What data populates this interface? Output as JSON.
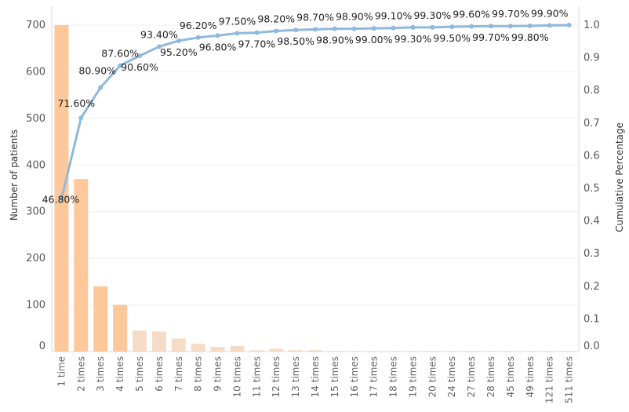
{
  "chart_data": {
    "type": "bar",
    "xlabel": "",
    "ylabel": "Number of patients",
    "y2label": "Cumulative Percentage",
    "ylim": [
      0,
      700
    ],
    "y2lim": [
      0,
      1.0
    ],
    "grid": true,
    "yticks": [
      "0",
      "100",
      "200",
      "300",
      "400",
      "500",
      "600",
      "700"
    ],
    "y2ticks": [
      "0.0",
      "0.1",
      "0.2",
      "0.3",
      "0.4",
      "0.5",
      "0.6",
      "0.7",
      "0.8",
      "0.9",
      "1.0"
    ],
    "categories": [
      "1 time",
      "2 times",
      "3 times",
      "4 times",
      "5 times",
      "6 times",
      "7 times",
      "8 times",
      "9 times",
      "10 times",
      "11 times",
      "12 times",
      "13 times",
      "14 times",
      "15 times",
      "16 times",
      "17 times",
      "18 times",
      "19 times",
      "20 times",
      "24 times",
      "27 times",
      "28 times",
      "45 times",
      "49 times",
      "121 times",
      "511 times"
    ],
    "series": [
      {
        "type": "bar",
        "values": [
          700,
          370,
          140,
          100,
          45,
          43,
          28,
          17,
          10,
          12,
          3,
          6,
          3,
          3,
          1,
          1,
          1,
          1,
          1,
          1,
          1,
          1,
          1,
          1,
          1,
          1,
          1
        ],
        "colors": [
          "#fec89a",
          "#fec89a",
          "#fec89a",
          "#fec89a",
          "#f6dcc6",
          "#f6dcc6",
          "#f6dcc6",
          "#f6dcc6",
          "#f6dcc6",
          "#f6dcc6",
          "#f6dcc6",
          "#f6dcc6",
          "#f6dcc6",
          "#f6dcc6",
          "#f6dcc6",
          "#f6dcc6",
          "#f6dcc6",
          "#f6dcc6",
          "#f6dcc6",
          "#f6dcc6",
          "#f6dcc6",
          "#f6dcc6",
          "#f6dcc6",
          "#f6dcc6",
          "#f6dcc6",
          "#f6dcc6",
          "#f6dcc6"
        ]
      },
      {
        "type": "line",
        "axis": "right",
        "values": [
          0.468,
          0.716,
          0.809,
          0.876,
          0.906,
          0.934,
          0.952,
          0.962,
          0.968,
          0.975,
          0.977,
          0.982,
          0.985,
          0.987,
          0.989,
          0.989,
          0.99,
          0.991,
          0.993,
          0.993,
          0.995,
          0.996,
          0.997,
          0.997,
          0.998,
          0.999,
          1.0
        ],
        "color": "#8fb9dd"
      }
    ],
    "point_labels": [
      "46.80%",
      "71.60%",
      "80.90%",
      "87.60%",
      "90.60%",
      "93.40%",
      "95.20%",
      "96.20%",
      "96.80%",
      "97.50%",
      "97.70%",
      "98.20%",
      "98.50%",
      "98.70%",
      "98.90%",
      "98.90%",
      "99.00%",
      "99.10%",
      "99.30%",
      "99.30%",
      "99.50%",
      "99.60%",
      "99.70%",
      "99.70%",
      "99.80%",
      "99.90%",
      ""
    ],
    "label_above": [
      false,
      false,
      false,
      true,
      false,
      true,
      false,
      true,
      false,
      true,
      false,
      true,
      false,
      true,
      false,
      true,
      false,
      true,
      false,
      true,
      false,
      true,
      false,
      true,
      false,
      true,
      false
    ]
  }
}
